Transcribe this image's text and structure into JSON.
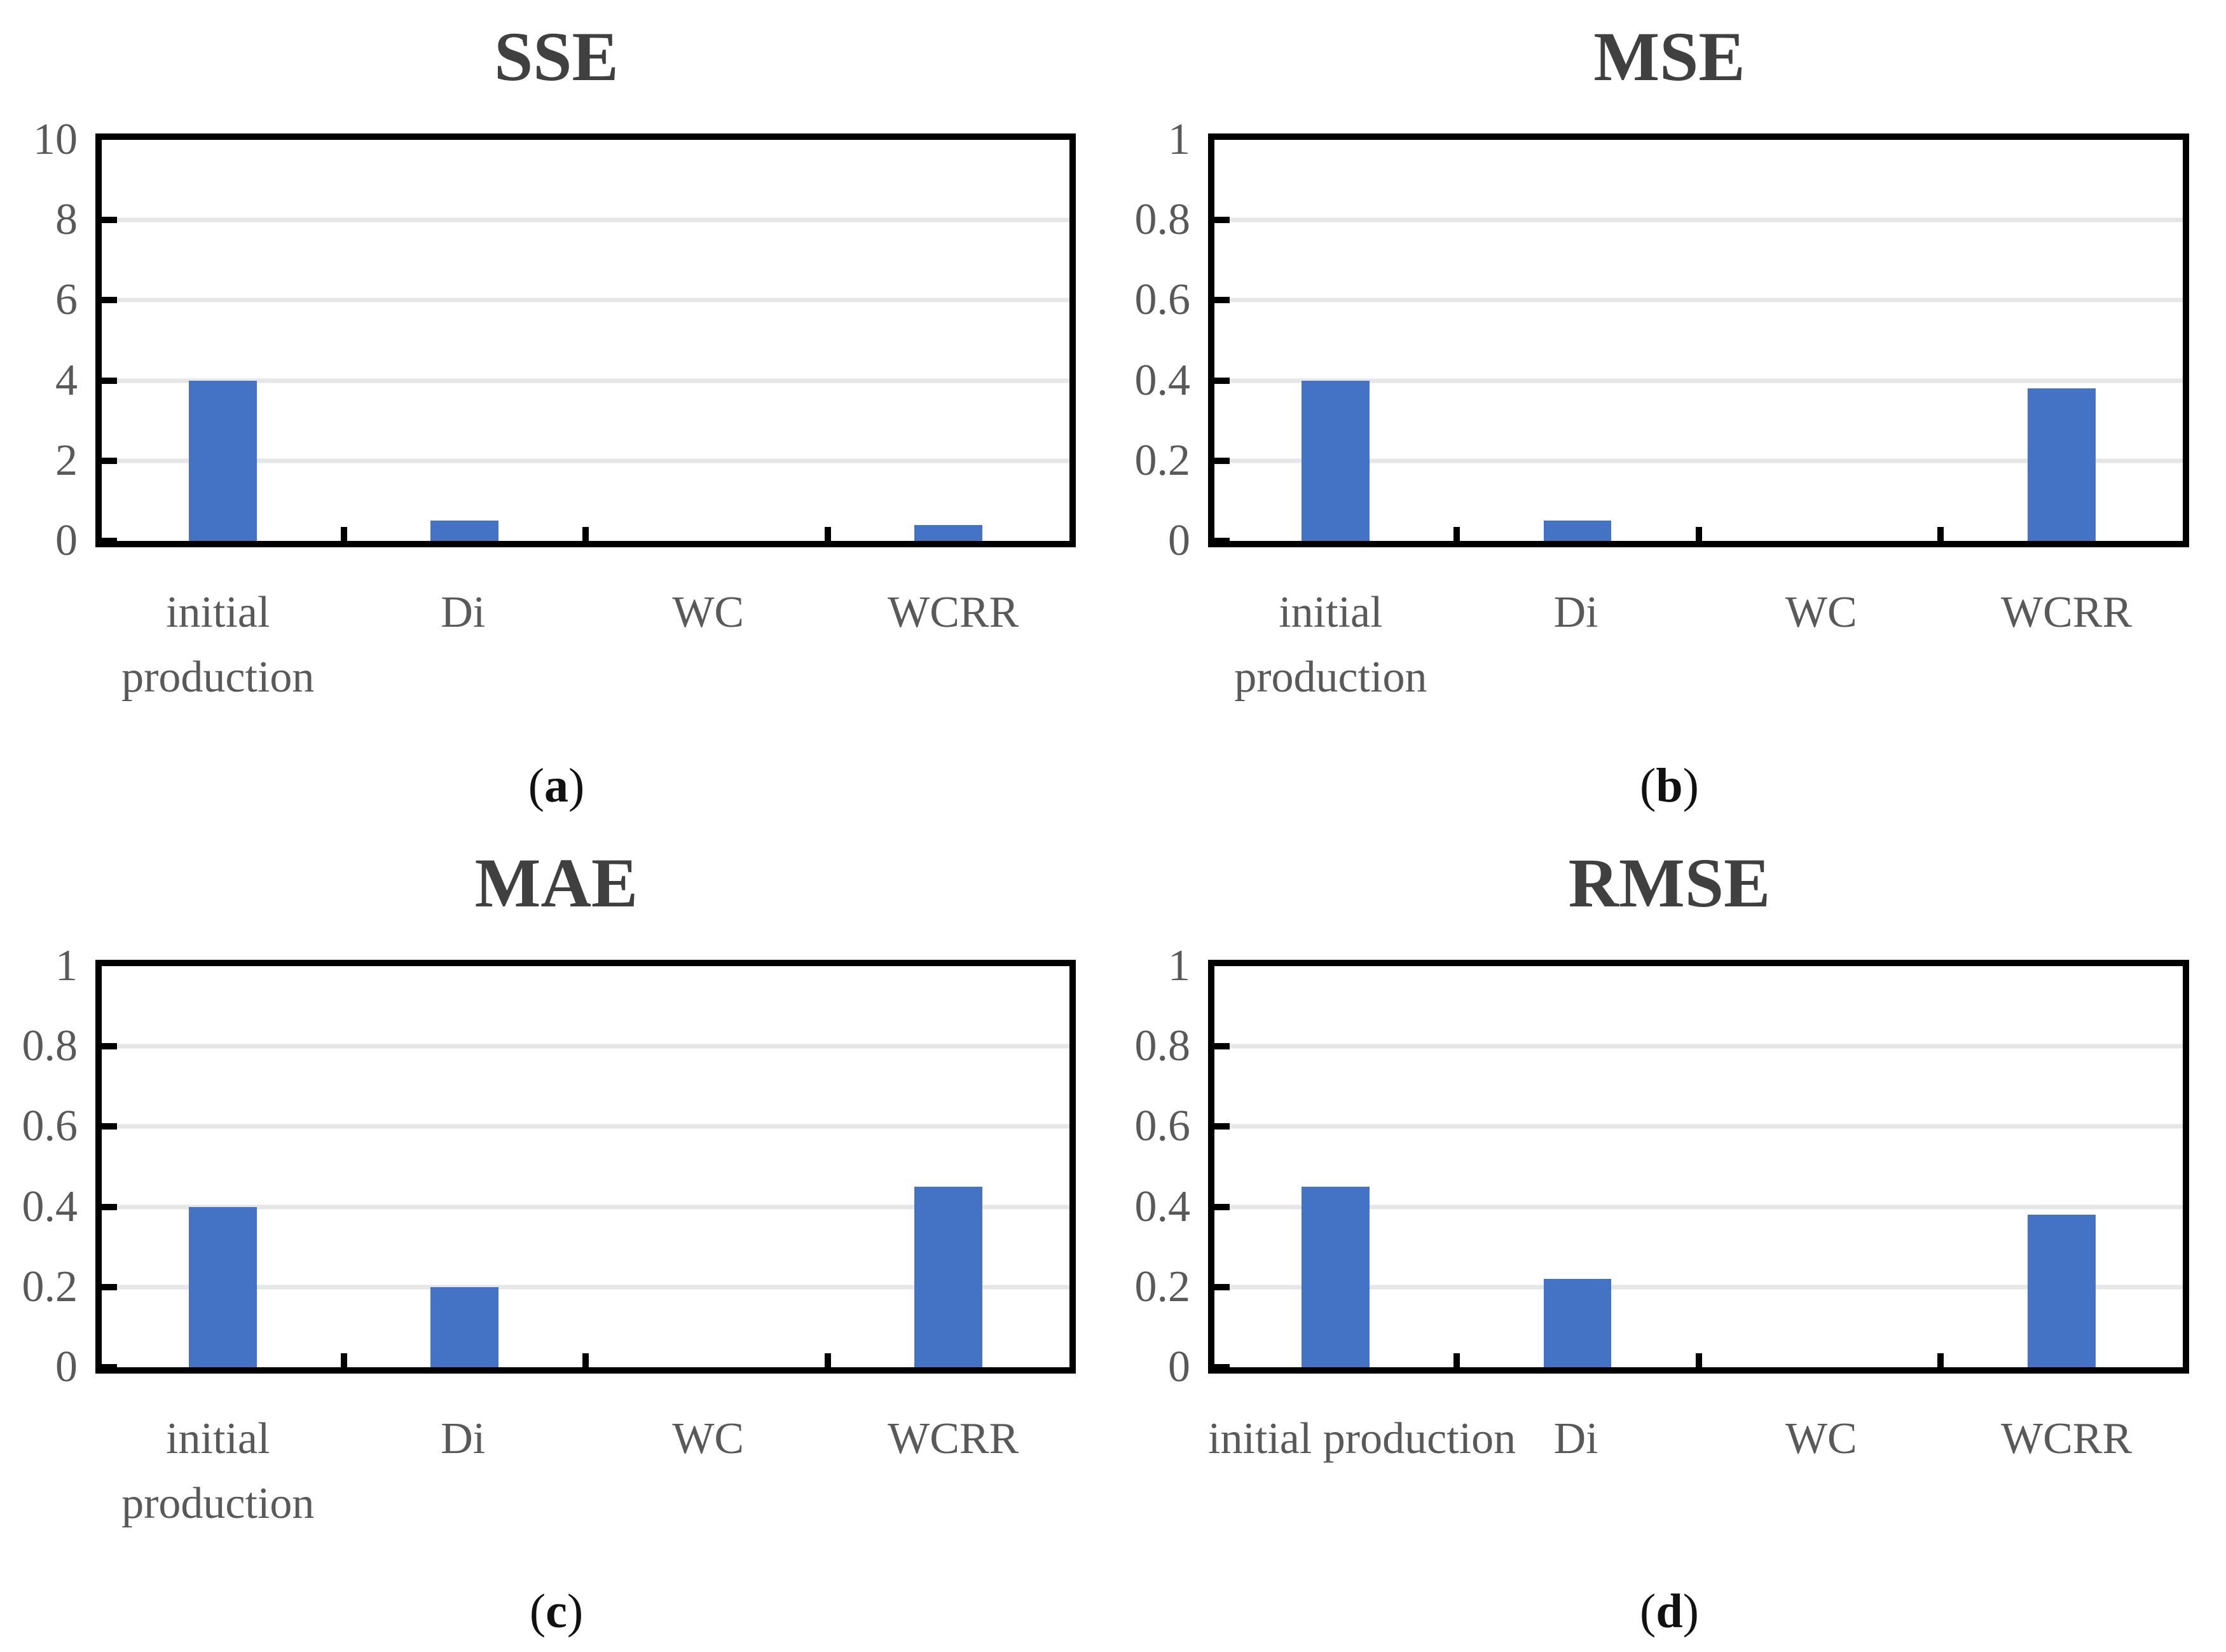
{
  "style": {
    "bar_color": "#4472C4",
    "title_color": "#404040",
    "axis_label_color": "#595959",
    "grid_color": "#E6E6E6",
    "frame_color": "#000000",
    "background_color": "#FFFFFF"
  },
  "chart_data": [
    {
      "type": "bar",
      "title": "SSE",
      "categories": [
        "initial production",
        "Di",
        "WC",
        "WCRR"
      ],
      "label_lines": [
        [
          "initial",
          "production"
        ],
        [
          "Di"
        ],
        [
          "WC"
        ],
        [
          "WCRR"
        ]
      ],
      "values": [
        4,
        0.5,
        0,
        0.4
      ],
      "xlabel": "",
      "ylabel": "",
      "ylim": [
        0,
        10
      ],
      "yticks": {
        "labels": [
          "0",
          "2",
          "4",
          "6",
          "8",
          "10"
        ],
        "values": [
          0,
          2,
          4,
          6,
          8,
          10
        ]
      },
      "grid": true,
      "legend": "none",
      "caption": {
        "pre": "(",
        "letter": "a",
        "post": ")"
      }
    },
    {
      "type": "bar",
      "title": "MSE",
      "categories": [
        "initial production",
        "Di",
        "WC",
        "WCRR"
      ],
      "label_lines": [
        [
          "initial",
          "production"
        ],
        [
          "Di"
        ],
        [
          "WC"
        ],
        [
          "WCRR"
        ]
      ],
      "values": [
        0.4,
        0.05,
        0,
        0.38
      ],
      "xlabel": "",
      "ylabel": "",
      "ylim": [
        0,
        1
      ],
      "yticks": {
        "labels": [
          "0",
          "0.2",
          "0.4",
          "0.6",
          "0.8",
          "1"
        ],
        "values": [
          0,
          0.2,
          0.4,
          0.6,
          0.8,
          1
        ]
      },
      "grid": true,
      "legend": "none",
      "caption": {
        "pre": "(",
        "letter": "b",
        "post": ")"
      }
    },
    {
      "type": "bar",
      "title": "MAE",
      "categories": [
        "initial production",
        "Di",
        "WC",
        "WCRR"
      ],
      "label_lines": [
        [
          "initial",
          "production"
        ],
        [
          "Di"
        ],
        [
          "WC"
        ],
        [
          "WCRR"
        ]
      ],
      "values": [
        0.4,
        0.2,
        0,
        0.45
      ],
      "xlabel": "",
      "ylabel": "",
      "ylim": [
        0,
        1
      ],
      "yticks": {
        "labels": [
          "0",
          "0.2",
          "0.4",
          "0.6",
          "0.8",
          "1"
        ],
        "values": [
          0,
          0.2,
          0.4,
          0.6,
          0.8,
          1
        ]
      },
      "grid": true,
      "legend": "none",
      "caption": {
        "pre": "(",
        "letter": "c",
        "post": ")"
      }
    },
    {
      "type": "bar",
      "title": "RMSE",
      "categories": [
        "initial production",
        "Di",
        "WC",
        "WCRR"
      ],
      "label_lines": [
        [
          "initial production"
        ],
        [
          "Di"
        ],
        [
          "WC"
        ],
        [
          "WCRR"
        ]
      ],
      "values": [
        0.45,
        0.22,
        0,
        0.38
      ],
      "xlabel": "",
      "ylabel": "",
      "ylim": [
        0,
        1
      ],
      "yticks": {
        "labels": [
          "0",
          "0.2",
          "0.4",
          "0.6",
          "0.8",
          "1"
        ],
        "values": [
          0,
          0.2,
          0.4,
          0.6,
          0.8,
          1
        ]
      },
      "grid": true,
      "legend": "none",
      "caption": {
        "pre": "(",
        "letter": "d",
        "post": ")"
      }
    }
  ]
}
